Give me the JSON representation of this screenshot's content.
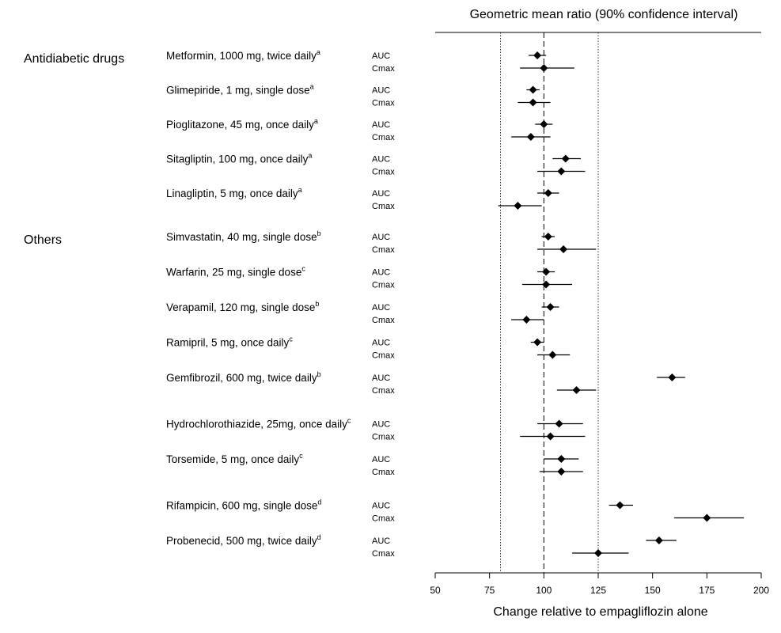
{
  "chart_data": {
    "type": "forest",
    "title": "Geometric mean ratio (90% confidence interval)",
    "xlabel": "Change relative to empagliflozin alone",
    "xlim": [
      50,
      200
    ],
    "xticks": [
      50,
      75,
      100,
      125,
      150,
      175,
      200
    ],
    "reference_lines": {
      "dashed": 100,
      "dotted": [
        80,
        125
      ]
    },
    "groups": [
      {
        "label": "Antidiabetic drugs",
        "drugs": [
          {
            "name": "Metformin, 1000 mg, twice daily",
            "sup": "a",
            "AUC": {
              "est": 97,
              "lo": 93,
              "hi": 101
            },
            "Cmax": {
              "est": 100,
              "lo": 89,
              "hi": 114
            }
          },
          {
            "name": "Glimepiride, 1 mg, single dose",
            "sup": "a",
            "AUC": {
              "est": 95,
              "lo": 92,
              "hi": 98
            },
            "Cmax": {
              "est": 95,
              "lo": 88,
              "hi": 103
            }
          },
          {
            "name": "Pioglitazone, 45 mg, once daily",
            "sup": "a",
            "AUC": {
              "est": 100,
              "lo": 96,
              "hi": 104
            },
            "Cmax": {
              "est": 94,
              "lo": 85,
              "hi": 103
            }
          },
          {
            "name": "Sitagliptin, 100 mg, once daily",
            "sup": "a",
            "AUC": {
              "est": 110,
              "lo": 104,
              "hi": 117
            },
            "Cmax": {
              "est": 108,
              "lo": 97,
              "hi": 119
            }
          },
          {
            "name": "Linagliptin, 5 mg, once daily",
            "sup": "a",
            "AUC": {
              "est": 102,
              "lo": 97,
              "hi": 107
            },
            "Cmax": {
              "est": 88,
              "lo": 79,
              "hi": 99
            }
          }
        ]
      },
      {
        "label": "Others",
        "drugs": [
          {
            "name": "Simvastatin, 40 mg, single dose",
            "sup": "b",
            "AUC": {
              "est": 102,
              "lo": 99,
              "hi": 105
            },
            "Cmax": {
              "est": 109,
              "lo": 97,
              "hi": 124
            }
          },
          {
            "name": "Warfarin, 25 mg, single dose",
            "sup": "c",
            "AUC": {
              "est": 101,
              "lo": 97,
              "hi": 105
            },
            "Cmax": {
              "est": 101,
              "lo": 90,
              "hi": 113
            }
          },
          {
            "name": "Verapamil, 120 mg, single dose",
            "sup": "b",
            "AUC": {
              "est": 103,
              "lo": 99,
              "hi": 107
            },
            "Cmax": {
              "est": 92,
              "lo": 85,
              "hi": 100
            }
          },
          {
            "name": "Ramipril, 5 mg, once daily",
            "sup": "c",
            "AUC": {
              "est": 97,
              "lo": 94,
              "hi": 100
            },
            "Cmax": {
              "est": 104,
              "lo": 97,
              "hi": 112
            }
          },
          {
            "name": "Gemfibrozil, 600 mg, twice daily",
            "sup": "b",
            "AUC": {
              "est": 159,
              "lo": 152,
              "hi": 165
            },
            "Cmax": {
              "est": 115,
              "lo": 106,
              "hi": 124
            }
          },
          {
            "name": "Hydrochlorothiazide, 25mg, once daily",
            "sup": "c",
            "AUC": {
              "est": 107,
              "lo": 97,
              "hi": 118
            },
            "Cmax": {
              "est": 103,
              "lo": 89,
              "hi": 119
            }
          },
          {
            "name": "Torsemide, 5 mg, once daily",
            "sup": "c",
            "AUC": {
              "est": 108,
              "lo": 100,
              "hi": 116
            },
            "Cmax": {
              "est": 108,
              "lo": 98,
              "hi": 118
            }
          },
          {
            "name": "Rifampicin, 600 mg, single dose",
            "sup": "d",
            "AUC": {
              "est": 135,
              "lo": 130,
              "hi": 141
            },
            "Cmax": {
              "est": 175,
              "lo": 160,
              "hi": 192
            }
          },
          {
            "name": "Probenecid, 500 mg, twice daily",
            "sup": "d",
            "AUC": {
              "est": 153,
              "lo": 147,
              "hi": 161
            },
            "Cmax": {
              "est": 125,
              "lo": 113,
              "hi": 139
            }
          }
        ]
      }
    ]
  }
}
